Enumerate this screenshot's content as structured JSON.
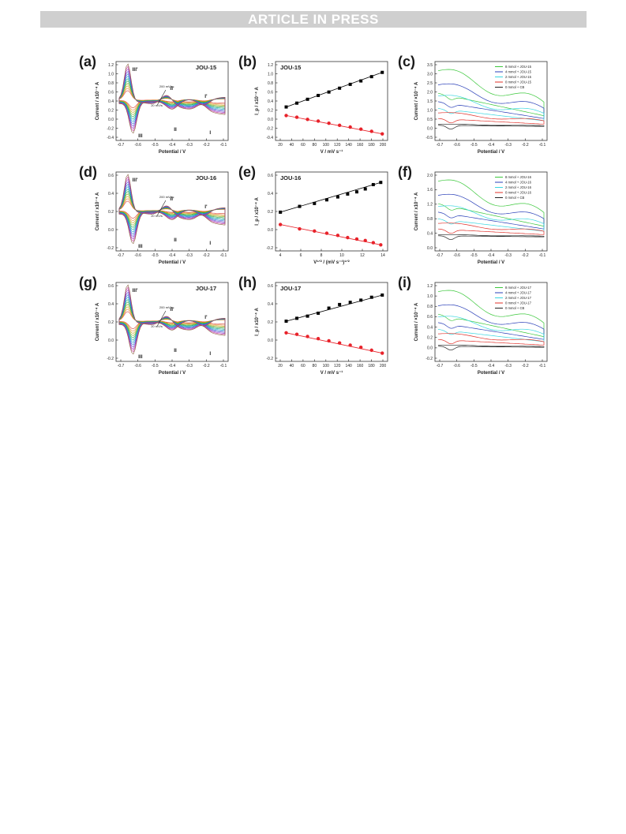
{
  "header": {
    "banner": "ARTICLE IN PRESS"
  },
  "figure": {
    "panels": [
      {
        "id": "a",
        "label": "(a)",
        "title": "JOU-15",
        "kind": "cv",
        "xlabel": "Potential / V",
        "ylabel": "Current / x10⁻⁴ A",
        "xticks": [
          "-0.7",
          "-0.6",
          "-0.5",
          "-0.4",
          "-0.3",
          "-0.2",
          "-0.1"
        ],
        "yticks": [
          "1.2",
          "1.0",
          "0.8",
          "0.6",
          "0.4",
          "0.2",
          "0.0",
          "-0.2",
          "-0.4"
        ],
        "anno": {
          "hi": "200 mV/s",
          "lo": "20 mV/s"
        },
        "peaks": [
          "III'",
          "II'",
          "I'",
          "III",
          "II",
          "I"
        ]
      },
      {
        "id": "b",
        "label": "(b)",
        "title": "JOU-15",
        "kind": "line",
        "xlabel": "V / mV s⁻¹",
        "ylabel": "I_p / x10⁻⁴ A",
        "xticks": [
          "20",
          "40",
          "60",
          "80",
          "100",
          "120",
          "140",
          "160",
          "180",
          "200"
        ],
        "yticks": [
          "1.2",
          "1.0",
          "0.8",
          "0.6",
          "0.4",
          "0.2",
          "0.0",
          "-0.2",
          "-0.4"
        ]
      },
      {
        "id": "c",
        "label": "(c)",
        "kind": "cvconc",
        "xlabel": "Potential / V",
        "ylabel": "Current / ×10⁻⁴ A",
        "xticks": [
          "-0.7",
          "-0.6",
          "-0.5",
          "-0.4",
          "-0.3",
          "-0.2",
          "-0.1"
        ],
        "yticks": [
          "3.5",
          "3.0",
          "2.5",
          "2.0",
          "1.5",
          "1.0",
          "0.5",
          "0.0",
          "-0.5"
        ],
        "legend": [
          "8 mmol + JOU-15",
          "4 mmol + JOU-15",
          "2 mmol + JOU-15",
          "0 mmol + JOU-15",
          "0 mmol + CB"
        ]
      },
      {
        "id": "d",
        "label": "(d)",
        "title": "JOU-16",
        "kind": "cv",
        "xlabel": "Potential / V",
        "ylabel": "Current / x10⁻⁴ A",
        "xticks": [
          "-0.7",
          "-0.6",
          "-0.5",
          "-0.4",
          "-0.3",
          "-0.2",
          "-0.1"
        ],
        "yticks": [
          "0.6",
          "0.4",
          "0.2",
          "0.0",
          "-0.2"
        ],
        "anno": {
          "hi": "200 mV/s",
          "lo": "20 mV/s"
        },
        "peaks": [
          "III'",
          "II'",
          "I'",
          "III",
          "II",
          "I"
        ]
      },
      {
        "id": "e",
        "label": "(e)",
        "title": "JOU-16",
        "kind": "line",
        "xlabel": "V¹ᐟ² / (mV s⁻¹)¹ᐟ²",
        "ylabel": "I_p / x10⁻⁴ A",
        "xticks": [
          "4",
          "6",
          "8",
          "10",
          "12",
          "14"
        ],
        "yticks": [
          "0.6",
          "0.4",
          "0.2",
          "0.0",
          "-0.2"
        ]
      },
      {
        "id": "f",
        "label": "(f)",
        "kind": "cvconc",
        "xlabel": "Potential / V",
        "ylabel": "Current / x10⁻⁴ A",
        "xticks": [
          "-0.7",
          "-0.6",
          "-0.5",
          "-0.4",
          "-0.3",
          "-0.2",
          "-0.1"
        ],
        "yticks": [
          "2.0",
          "1.6",
          "1.2",
          "0.8",
          "0.4",
          "0.0"
        ],
        "legend": [
          "8 mmol + JOU-16",
          "4 mmol + JOU-16",
          "2 mmol + JOU-16",
          "0 mmol + JOU-16",
          "0 mmol + CB"
        ]
      },
      {
        "id": "g",
        "label": "(g)",
        "title": "JOU-17",
        "kind": "cv",
        "xlabel": "Potential / V",
        "ylabel": "Current / x10⁻⁴ A",
        "xticks": [
          "-0.7",
          "-0.6",
          "-0.5",
          "-0.4",
          "-0.3",
          "-0.2",
          "-0.1"
        ],
        "yticks": [
          "0.6",
          "0.4",
          "0.2",
          "0.0",
          "-0.2"
        ],
        "anno": {
          "hi": "200 mV/s",
          "lo": "20 mV/s"
        },
        "peaks": [
          "III'",
          "II'",
          "I'",
          "III",
          "II",
          "I"
        ]
      },
      {
        "id": "h",
        "label": "(h)",
        "title": "JOU-17",
        "kind": "line",
        "xlabel": "V / mV s⁻¹",
        "ylabel": "I_p / x10⁻⁴ A",
        "xticks": [
          "20",
          "40",
          "60",
          "80",
          "100",
          "120",
          "140",
          "160",
          "180",
          "200"
        ],
        "yticks": [
          "0.6",
          "0.4",
          "0.2",
          "0.0",
          "-0.2"
        ]
      },
      {
        "id": "i",
        "label": "(i)",
        "kind": "cvconc",
        "xlabel": "Potential / V",
        "ylabel": "Current / ×10⁻⁴ A",
        "xticks": [
          "-0.7",
          "-0.6",
          "-0.5",
          "-0.4",
          "-0.3",
          "-0.2",
          "-0.1"
        ],
        "yticks": [
          "1.2",
          "1.0",
          "0.8",
          "0.6",
          "0.4",
          "0.2",
          "0.0",
          "-0.2"
        ],
        "legend": [
          "8 mmol + JOU-17",
          "4 mmol + JOU-17",
          "2 mmol + JOU-17",
          "0 mmol + JOU-17",
          "0 mmol + CB"
        ]
      }
    ]
  },
  "chart_data": [
    {
      "panel": "b",
      "type": "scatter",
      "series": [
        {
          "x": [
            20,
            40,
            60,
            80,
            100,
            120,
            140,
            160,
            180,
            200
          ],
          "values": [
            0.26,
            0.35,
            0.44,
            0.53,
            0.61,
            0.7,
            0.79,
            0.87,
            0.97,
            1.07
          ],
          "color": "#000000",
          "marker": "square"
        },
        {
          "x": [
            20,
            40,
            60,
            80,
            100,
            120,
            140,
            160,
            180,
            200
          ],
          "values": [
            0.06,
            0.02,
            -0.03,
            -0.07,
            -0.12,
            -0.17,
            -0.21,
            -0.26,
            -0.31,
            -0.37
          ],
          "color": "#e8222a",
          "marker": "circle"
        }
      ],
      "xlim": [
        0,
        210
      ],
      "ylim": [
        -0.45,
        1.25
      ]
    },
    {
      "panel": "e",
      "type": "scatter",
      "series": [
        {
          "x": [
            4.47,
            6.32,
            7.75,
            8.94,
            10.0,
            10.95,
            11.83,
            12.65,
            13.42,
            14.14
          ],
          "values": [
            0.19,
            0.27,
            0.31,
            0.36,
            0.4,
            0.44,
            0.47,
            0.51,
            0.57,
            0.6
          ],
          "color": "#000000",
          "marker": "square"
        },
        {
          "x": [
            4.47,
            6.32,
            7.75,
            8.94,
            10.0,
            10.95,
            11.83,
            12.65,
            13.42,
            14.14
          ],
          "values": [
            0.02,
            -0.04,
            -0.07,
            -0.1,
            -0.13,
            -0.16,
            -0.18,
            -0.2,
            -0.23,
            -0.26
          ],
          "color": "#e8222a",
          "marker": "circle"
        }
      ],
      "xlim": [
        4,
        14.8
      ],
      "ylim": [
        -0.3,
        0.7
      ]
    },
    {
      "panel": "h",
      "type": "scatter",
      "series": [
        {
          "x": [
            20,
            40,
            60,
            80,
            100,
            120,
            140,
            160,
            180,
            200
          ],
          "values": [
            0.21,
            0.25,
            0.28,
            0.32,
            0.39,
            0.44,
            0.47,
            0.5,
            0.54,
            0.57
          ],
          "color": "#000000",
          "marker": "square"
        },
        {
          "x": [
            20,
            40,
            60,
            80,
            100,
            120,
            140,
            160,
            180,
            200
          ],
          "values": [
            0.05,
            0.03,
            0.0,
            -0.03,
            -0.06,
            -0.09,
            -0.12,
            -0.15,
            -0.19,
            -0.23
          ],
          "color": "#e8222a",
          "marker": "circle"
        }
      ],
      "xlim": [
        0,
        210
      ],
      "ylim": [
        -0.3,
        0.7
      ]
    }
  ]
}
